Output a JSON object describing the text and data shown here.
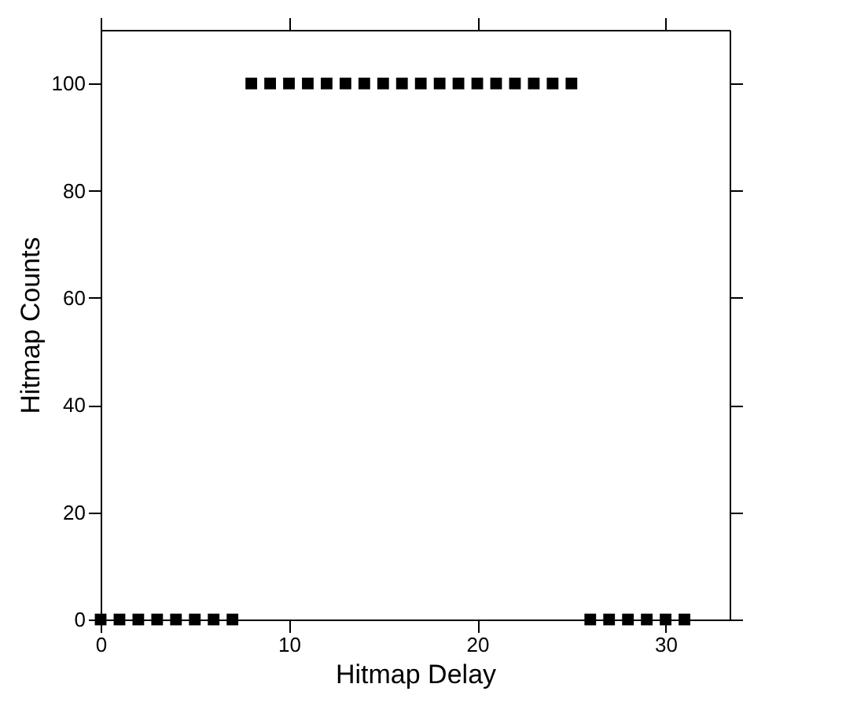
{
  "chart_data": {
    "type": "scatter",
    "xlabel": "Hitmap Delay",
    "ylabel": "Hitmap Counts",
    "x": [
      0,
      1,
      2,
      3,
      4,
      5,
      6,
      7,
      8,
      9,
      10,
      11,
      12,
      13,
      14,
      15,
      16,
      17,
      18,
      19,
      20,
      21,
      22,
      23,
      24,
      25,
      26,
      27,
      28,
      29,
      30,
      31
    ],
    "series": [
      {
        "color": "#000000",
        "values": [
          0,
          0,
          0,
          0,
          0,
          0,
          0,
          0,
          100,
          100,
          100,
          100,
          100,
          100,
          100,
          100,
          100,
          100,
          100,
          100,
          100,
          100,
          100,
          100,
          100,
          100,
          0,
          0,
          0,
          0,
          0,
          0
        ]
      }
    ],
    "xlim": [
      0,
      33.4
    ],
    "ylim": [
      0,
      110
    ],
    "xticks": [
      0,
      10,
      20,
      30
    ],
    "yticks": [
      0,
      20,
      40,
      60,
      80,
      100
    ],
    "marker": "square",
    "grid": false,
    "legend": false
  }
}
